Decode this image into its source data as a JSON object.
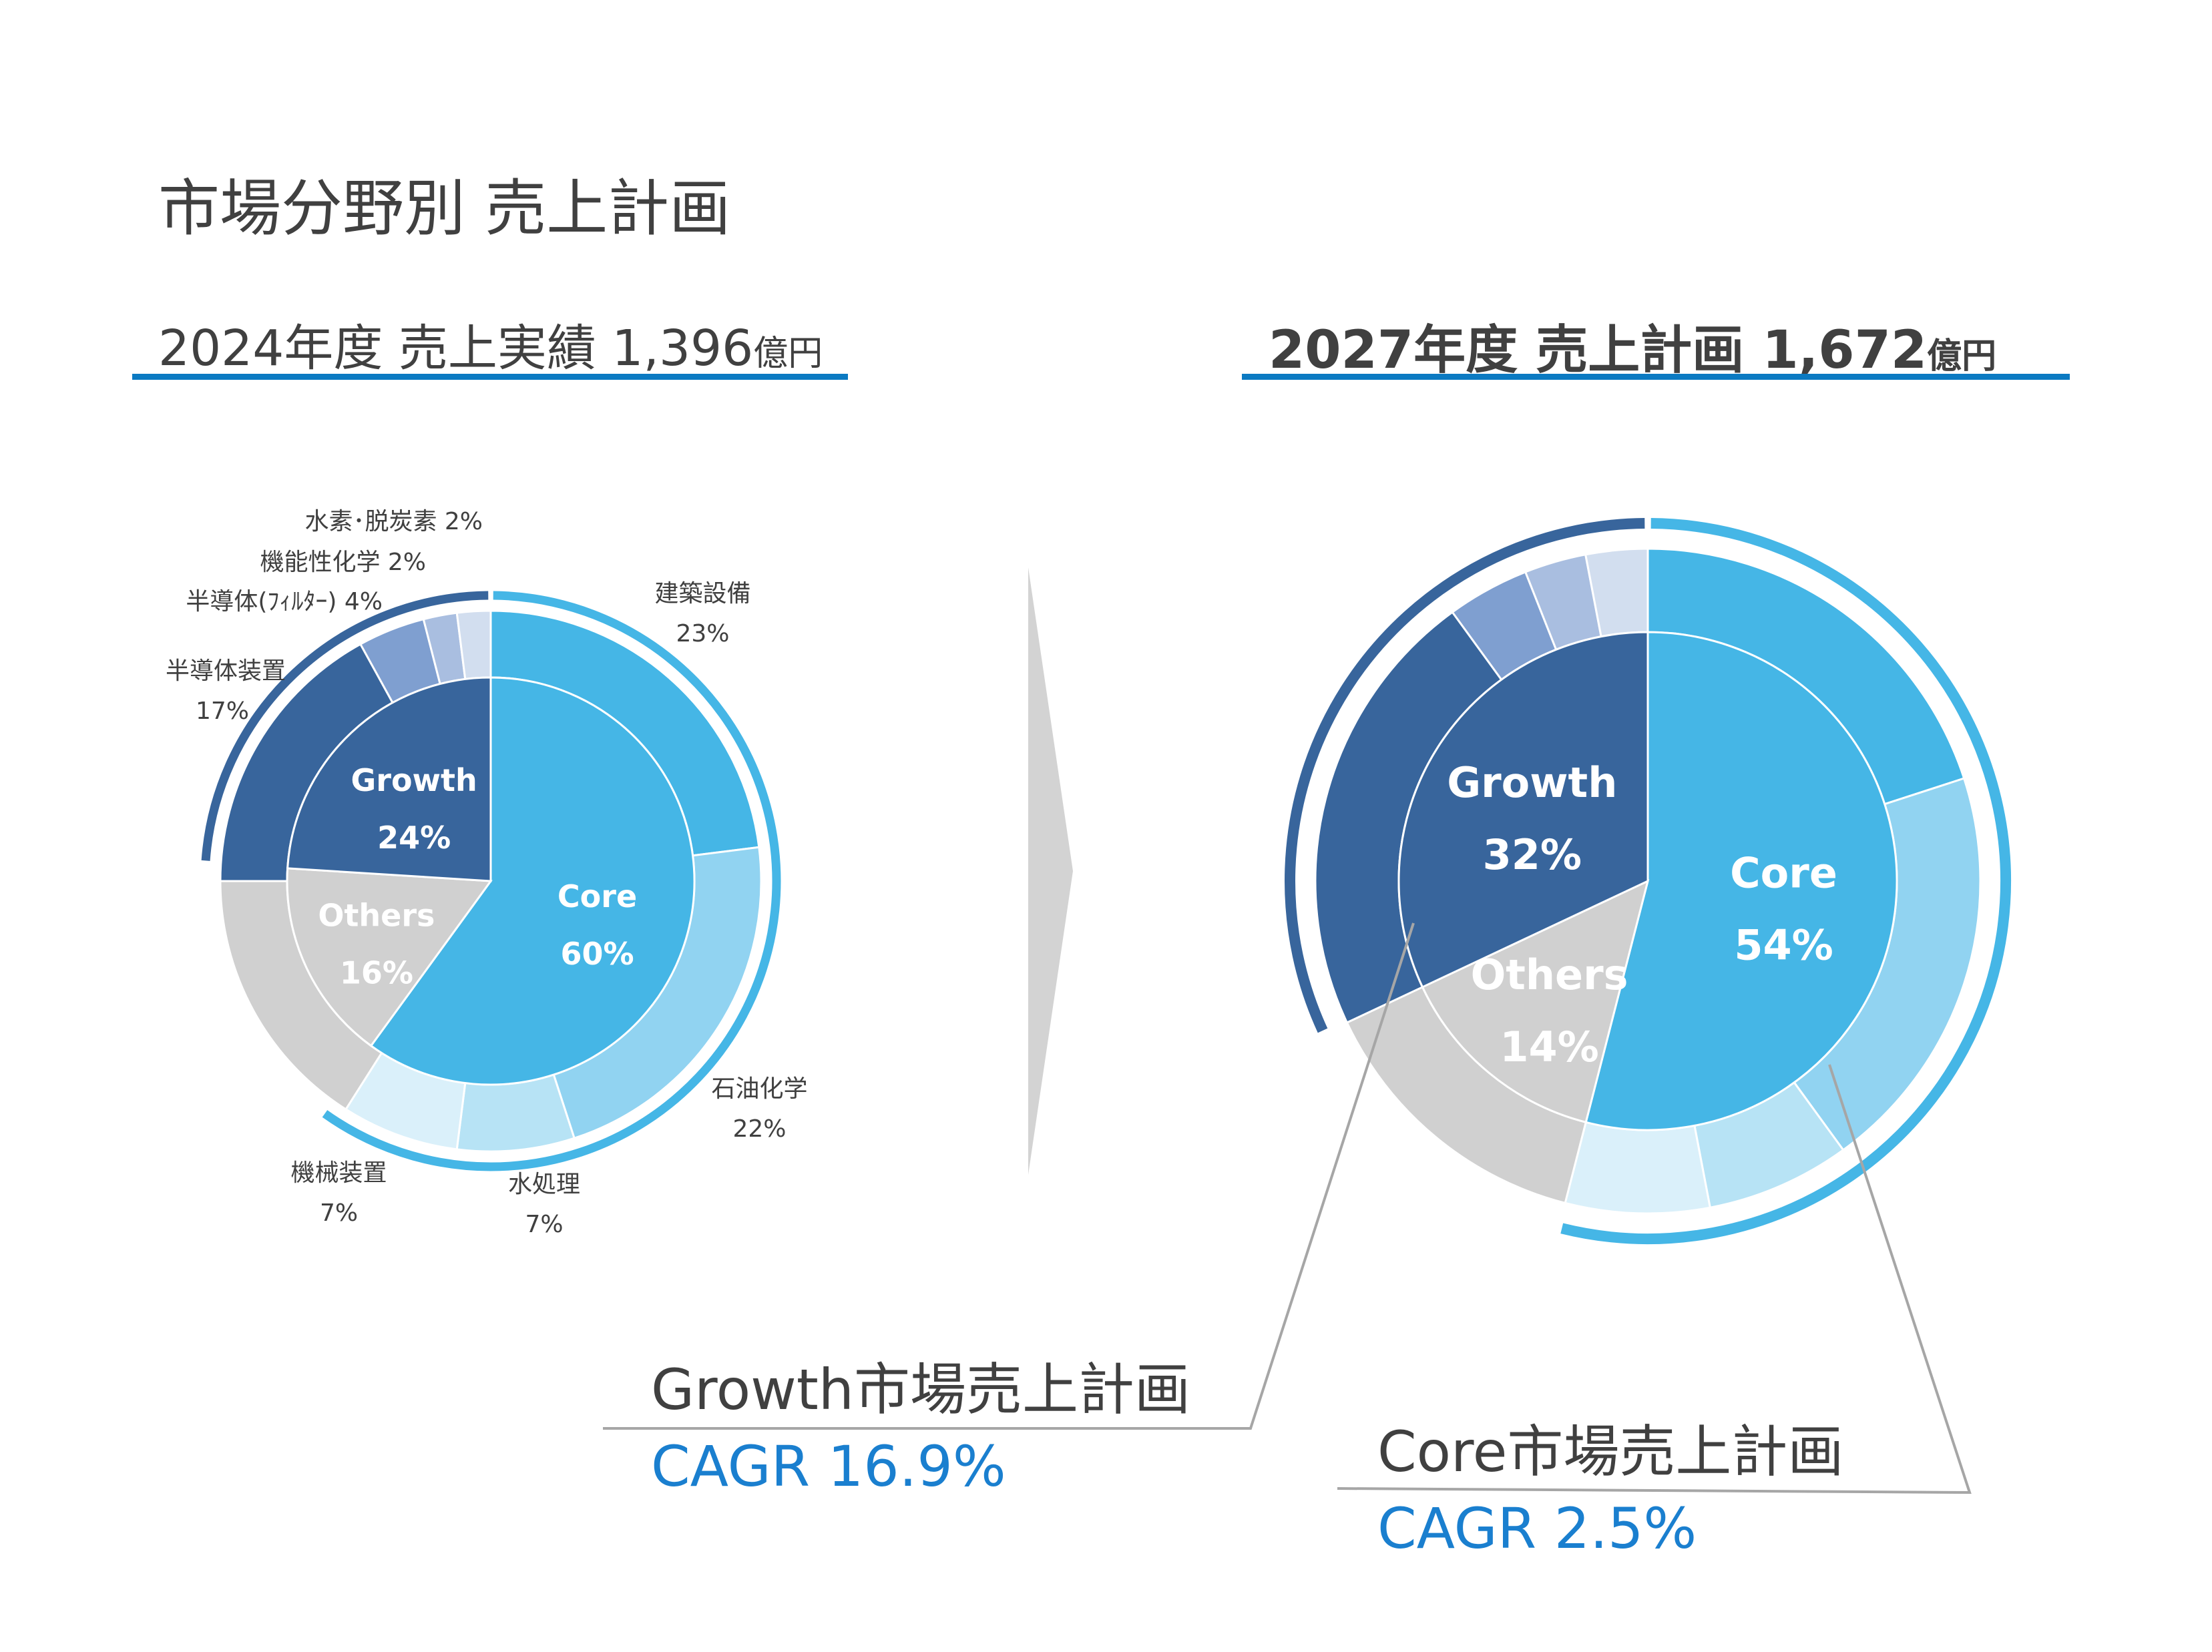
{
  "title": "市場分野別 売上計画",
  "header_2024": {
    "label": "2024年度 売上実績 1,396",
    "unit": "億円"
  },
  "header_2027": {
    "label": "2027年度 売上計画 1,672",
    "unit": "億円"
  },
  "growth_cagr": {
    "heading": "Growth市場売上計画",
    "value": "CAGR 16.9%"
  },
  "core_cagr": {
    "heading": "Core市場売上計画",
    "value": "CAGR 2.5%"
  },
  "segment_labels_2024": {
    "kenchiku": {
      "name": "建築設備",
      "pct": "23%"
    },
    "sekiyu": {
      "name": "石油化学",
      "pct": "22%"
    },
    "mizu": {
      "name": "水処理",
      "pct": "7%"
    },
    "kikai": {
      "name": "機械装置",
      "pct": "7%"
    },
    "handotai_souchi": {
      "name": "半導体装置",
      "pct": "17%"
    },
    "handotai_filter": "半導体(ﾌｨﾙﾀｰ)  4%",
    "kinousei": "機能性化学  2%",
    "suiso": "水素･脱炭素  2%"
  },
  "colors": {
    "core": "#45b6e6",
    "growth": "#38659c",
    "others": "#d0d0d0",
    "core_outer": [
      "#45b6e6",
      "#91d3f1",
      "#b7e3f5",
      "#daf0fa"
    ],
    "growth_outer": [
      "#38659c",
      "#7f9fd0",
      "#a9bee0",
      "#d2deef"
    ],
    "arrow": "#d3d3d3",
    "accent_line": "#0b7ac2",
    "cagr": "#1a7fcf"
  },
  "chart_data": [
    {
      "type": "pie",
      "subtitle": "2024年度 売上実績 1,396億円",
      "inner": [
        {
          "name": "Core",
          "value": 60,
          "label": "60%"
        },
        {
          "name": "Others",
          "value": 16,
          "label": "16%"
        },
        {
          "name": "Growth",
          "value": 24,
          "label": "24%"
        }
      ],
      "outer": [
        {
          "name": "建築設備",
          "value": 23,
          "group": "Core"
        },
        {
          "name": "石油化学",
          "value": 22,
          "group": "Core"
        },
        {
          "name": "水処理",
          "value": 7,
          "group": "Core"
        },
        {
          "name": "機械装置",
          "value": 7,
          "group": "Core"
        },
        {
          "name": "",
          "value": 16,
          "group": "Others"
        },
        {
          "name": "半導体装置",
          "value": 17,
          "group": "Growth"
        },
        {
          "name": "半導体(ﾌｨﾙﾀｰ)",
          "value": 4,
          "group": "Growth"
        },
        {
          "name": "機能性化学",
          "value": 2,
          "group": "Growth"
        },
        {
          "name": "水素･脱炭素",
          "value": 2,
          "group": "Growth"
        }
      ]
    },
    {
      "type": "pie",
      "subtitle": "2027年度 売上計画 1,672億円",
      "inner": [
        {
          "name": "Core",
          "value": 54,
          "label": "54%"
        },
        {
          "name": "Others",
          "value": 14,
          "label": "14%"
        },
        {
          "name": "Growth",
          "value": 32,
          "label": "32%"
        }
      ],
      "outer": [
        {
          "name": "建築設備",
          "value": 20,
          "group": "Core"
        },
        {
          "name": "石油化学",
          "value": 20,
          "group": "Core"
        },
        {
          "name": "水処理",
          "value": 7,
          "group": "Core"
        },
        {
          "name": "機械装置",
          "value": 7,
          "group": "Core"
        },
        {
          "name": "",
          "value": 14,
          "group": "Others"
        },
        {
          "name": "半導体装置",
          "value": 22,
          "group": "Growth"
        },
        {
          "name": "半導体(ﾌｨﾙﾀｰ)",
          "value": 4,
          "group": "Growth"
        },
        {
          "name": "機能性化学",
          "value": 3,
          "group": "Growth"
        },
        {
          "name": "水素･脱炭素",
          "value": 3,
          "group": "Growth"
        }
      ]
    }
  ]
}
